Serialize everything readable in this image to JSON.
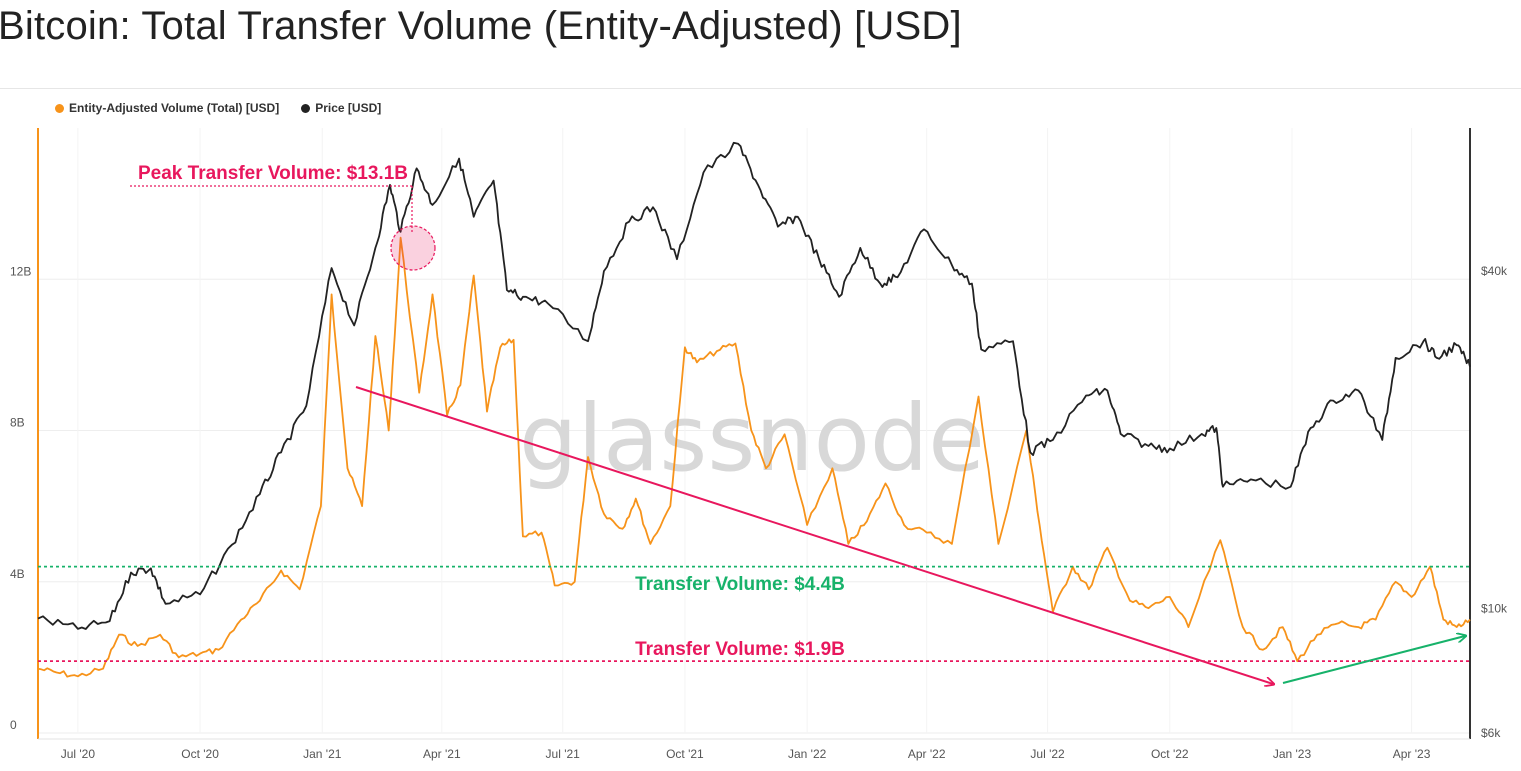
{
  "title": "Bitcoin: Total Transfer Volume (Entity-Adjusted) [USD]",
  "watermark": "glassnode",
  "legend": [
    {
      "label": "Entity-Adjusted Volume (Total) [USD]",
      "color": "#f7931a"
    },
    {
      "label": "Price [USD]",
      "color": "#222222"
    }
  ],
  "annotations": {
    "peak": "Peak Transfer Volume: $13.1B",
    "level_mid": "Transfer Volume: $4.4B",
    "level_low": "Transfer Volume: $1.9B"
  },
  "colors": {
    "volume": "#f7931a",
    "price": "#222222",
    "pink": "#e8175d",
    "green": "#17b26a",
    "axis": "#333333"
  },
  "chart_data": {
    "type": "line",
    "x_tick_labels": [
      "Jul '20",
      "Oct '20",
      "Jan '21",
      "Apr '21",
      "Jul '21",
      "Oct '21",
      "Jan '22",
      "Apr '22",
      "Jul '22",
      "Oct '22",
      "Jan '23",
      "Apr '23"
    ],
    "y_left_ticks": [
      {
        "label": "0",
        "value": 0
      },
      {
        "label": "4B",
        "value": 4
      },
      {
        "label": "8B",
        "value": 8
      },
      {
        "label": "12B",
        "value": 12
      }
    ],
    "y_right_ticks": [
      {
        "label": "$6k",
        "value": 6000
      },
      {
        "label": "$10k",
        "value": 10000
      },
      {
        "label": "$40k",
        "value": 40000
      }
    ],
    "y_left_range_billion": [
      0,
      16
    ],
    "y_right_range_usd": [
      6000,
      72000
    ],
    "y_right_scale": "log",
    "grid": true,
    "legend_position": "top-left",
    "series": [
      {
        "name": "Entity-Adjusted Volume (Total) [USD]",
        "axis": "left",
        "points": [
          [
            "2020-06-01",
            1.7
          ],
          [
            "2020-06-15",
            1.6
          ],
          [
            "2020-07-01",
            1.5
          ],
          [
            "2020-07-20",
            1.7
          ],
          [
            "2020-08-01",
            2.6
          ],
          [
            "2020-08-15",
            2.3
          ],
          [
            "2020-09-01",
            2.6
          ],
          [
            "2020-09-15",
            2.0
          ],
          [
            "2020-10-01",
            2.1
          ],
          [
            "2020-10-15",
            2.2
          ],
          [
            "2020-11-01",
            3.0
          ],
          [
            "2020-11-15",
            3.5
          ],
          [
            "2020-12-01",
            4.3
          ],
          [
            "2020-12-15",
            3.8
          ],
          [
            "2020-12-31",
            6.0
          ],
          [
            "2021-01-08",
            11.6
          ],
          [
            "2021-01-20",
            7.0
          ],
          [
            "2021-01-31",
            6.0
          ],
          [
            "2021-02-10",
            10.5
          ],
          [
            "2021-02-20",
            8.0
          ],
          [
            "2021-03-01",
            13.1
          ],
          [
            "2021-03-15",
            9.0
          ],
          [
            "2021-03-25",
            11.6
          ],
          [
            "2021-04-05",
            8.4
          ],
          [
            "2021-04-15",
            9.2
          ],
          [
            "2021-04-25",
            12.1
          ],
          [
            "2021-05-05",
            8.5
          ],
          [
            "2021-05-15",
            10.2
          ],
          [
            "2021-05-25",
            10.4
          ],
          [
            "2021-06-01",
            5.2
          ],
          [
            "2021-06-15",
            5.3
          ],
          [
            "2021-06-25",
            3.9
          ],
          [
            "2021-07-10",
            4.0
          ],
          [
            "2021-07-20",
            7.3
          ],
          [
            "2021-08-01",
            5.8
          ],
          [
            "2021-08-15",
            5.4
          ],
          [
            "2021-08-25",
            6.2
          ],
          [
            "2021-09-05",
            5.0
          ],
          [
            "2021-09-20",
            6.0
          ],
          [
            "2021-10-01",
            10.2
          ],
          [
            "2021-10-10",
            9.8
          ],
          [
            "2021-10-25",
            10.1
          ],
          [
            "2021-11-08",
            10.3
          ],
          [
            "2021-11-20",
            8.0
          ],
          [
            "2021-12-01",
            7.0
          ],
          [
            "2021-12-15",
            7.9
          ],
          [
            "2022-01-01",
            5.5
          ],
          [
            "2022-01-20",
            7.0
          ],
          [
            "2022-02-01",
            5.0
          ],
          [
            "2022-02-15",
            5.6
          ],
          [
            "2022-03-01",
            6.6
          ],
          [
            "2022-03-15",
            5.5
          ],
          [
            "2022-04-01",
            5.3
          ],
          [
            "2022-04-20",
            5.0
          ],
          [
            "2022-05-10",
            8.9
          ],
          [
            "2022-05-25",
            5.0
          ],
          [
            "2022-06-15",
            8.0
          ],
          [
            "2022-06-25",
            5.5
          ],
          [
            "2022-07-05",
            3.2
          ],
          [
            "2022-07-20",
            4.4
          ],
          [
            "2022-08-01",
            3.8
          ],
          [
            "2022-08-15",
            4.9
          ],
          [
            "2022-09-01",
            3.5
          ],
          [
            "2022-09-15",
            3.3
          ],
          [
            "2022-10-01",
            3.6
          ],
          [
            "2022-10-15",
            2.8
          ],
          [
            "2022-11-08",
            5.1
          ],
          [
            "2022-11-25",
            2.8
          ],
          [
            "2022-12-10",
            2.2
          ],
          [
            "2022-12-25",
            2.8
          ],
          [
            "2023-01-05",
            1.9
          ],
          [
            "2023-01-20",
            2.6
          ],
          [
            "2023-02-05",
            2.9
          ],
          [
            "2023-02-20",
            2.8
          ],
          [
            "2023-03-05",
            3.0
          ],
          [
            "2023-03-20",
            4.0
          ],
          [
            "2023-04-01",
            3.6
          ],
          [
            "2023-04-15",
            4.4
          ],
          [
            "2023-04-25",
            3.0
          ],
          [
            "2023-05-05",
            2.8
          ],
          [
            "2023-05-15",
            3.0
          ]
        ]
      },
      {
        "name": "Price [USD]",
        "axis": "right",
        "points": [
          [
            "2020-06-01",
            9600
          ],
          [
            "2020-07-01",
            9200
          ],
          [
            "2020-07-25",
            9500
          ],
          [
            "2020-08-10",
            11600
          ],
          [
            "2020-08-25",
            11800
          ],
          [
            "2020-09-05",
            10200
          ],
          [
            "2020-10-01",
            10600
          ],
          [
            "2020-10-25",
            13000
          ],
          [
            "2020-11-15",
            16000
          ],
          [
            "2020-12-01",
            19000
          ],
          [
            "2020-12-20",
            23000
          ],
          [
            "2021-01-08",
            40500
          ],
          [
            "2021-01-25",
            32000
          ],
          [
            "2021-02-10",
            44000
          ],
          [
            "2021-02-21",
            57000
          ],
          [
            "2021-03-01",
            47000
          ],
          [
            "2021-03-13",
            61000
          ],
          [
            "2021-03-25",
            52500
          ],
          [
            "2021-04-14",
            63500
          ],
          [
            "2021-04-25",
            50000
          ],
          [
            "2021-05-10",
            58000
          ],
          [
            "2021-05-20",
            37000
          ],
          [
            "2021-06-01",
            36000
          ],
          [
            "2021-06-20",
            35000
          ],
          [
            "2021-07-20",
            30000
          ],
          [
            "2021-08-01",
            40000
          ],
          [
            "2021-08-20",
            49000
          ],
          [
            "2021-09-07",
            52000
          ],
          [
            "2021-09-25",
            42000
          ],
          [
            "2021-10-15",
            60000
          ],
          [
            "2021-11-10",
            67500
          ],
          [
            "2021-11-25",
            57000
          ],
          [
            "2021-12-10",
            48000
          ],
          [
            "2021-12-25",
            50000
          ],
          [
            "2022-01-10",
            42000
          ],
          [
            "2022-01-25",
            36000
          ],
          [
            "2022-02-10",
            44000
          ],
          [
            "2022-02-25",
            38000
          ],
          [
            "2022-03-10",
            39000
          ],
          [
            "2022-03-30",
            47500
          ],
          [
            "2022-04-20",
            41000
          ],
          [
            "2022-05-05",
            38000
          ],
          [
            "2022-05-12",
            29000
          ],
          [
            "2022-06-05",
            30000
          ],
          [
            "2022-06-18",
            19000
          ],
          [
            "2022-07-05",
            20000
          ],
          [
            "2022-07-30",
            24000
          ],
          [
            "2022-08-15",
            24500
          ],
          [
            "2022-08-25",
            20500
          ],
          [
            "2022-09-15",
            19500
          ],
          [
            "2022-10-01",
            19300
          ],
          [
            "2022-10-25",
            20500
          ],
          [
            "2022-11-05",
            21000
          ],
          [
            "2022-11-10",
            16500
          ],
          [
            "2022-12-01",
            17000
          ],
          [
            "2022-12-31",
            16500
          ],
          [
            "2023-01-15",
            21000
          ],
          [
            "2023-02-01",
            23500
          ],
          [
            "2023-02-20",
            24500
          ],
          [
            "2023-03-10",
            20000
          ],
          [
            "2023-03-20",
            28000
          ],
          [
            "2023-04-10",
            30000
          ],
          [
            "2023-04-20",
            28000
          ],
          [
            "2023-05-05",
            29500
          ],
          [
            "2023-05-15",
            27000
          ]
        ]
      }
    ]
  }
}
